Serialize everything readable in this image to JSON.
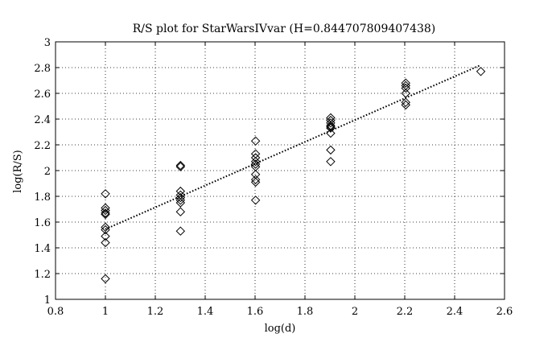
{
  "chart_data": {
    "type": "scatter",
    "title": "R/S plot for StarWarsIVvar (H=0.844707809407438)",
    "xlabel": "log(d)",
    "ylabel": "log(R/S)",
    "xlim": [
      0.8,
      2.6
    ],
    "ylim": [
      1,
      3
    ],
    "xticks": [
      "0.8",
      "1",
      "1.2",
      "1.4",
      "1.6",
      "1.8",
      "2",
      "2.2",
      "2.4",
      "2.6"
    ],
    "yticks": [
      "1",
      "1.2",
      "1.4",
      "1.6",
      "1.8",
      "2",
      "2.2",
      "2.4",
      "2.6",
      "2.8",
      "3"
    ],
    "grid": true,
    "marker": "diamond",
    "points": [
      {
        "x": 1.0,
        "y": 1.82
      },
      {
        "x": 1.0,
        "y": 1.71
      },
      {
        "x": 1.0,
        "y": 1.69
      },
      {
        "x": 1.0,
        "y": 1.67
      },
      {
        "x": 1.0,
        "y": 1.66
      },
      {
        "x": 1.0,
        "y": 1.56
      },
      {
        "x": 1.0,
        "y": 1.54
      },
      {
        "x": 1.0,
        "y": 1.49
      },
      {
        "x": 1.0,
        "y": 1.44
      },
      {
        "x": 1.0,
        "y": 1.16
      },
      {
        "x": 1.301,
        "y": 2.04
      },
      {
        "x": 1.301,
        "y": 2.03
      },
      {
        "x": 1.301,
        "y": 1.84
      },
      {
        "x": 1.301,
        "y": 1.81
      },
      {
        "x": 1.301,
        "y": 1.79
      },
      {
        "x": 1.301,
        "y": 1.77
      },
      {
        "x": 1.301,
        "y": 1.75
      },
      {
        "x": 1.301,
        "y": 1.68
      },
      {
        "x": 1.301,
        "y": 1.53
      },
      {
        "x": 1.602,
        "y": 2.23
      },
      {
        "x": 1.602,
        "y": 2.13
      },
      {
        "x": 1.602,
        "y": 2.1
      },
      {
        "x": 1.602,
        "y": 2.07
      },
      {
        "x": 1.602,
        "y": 2.05
      },
      {
        "x": 1.602,
        "y": 2.03
      },
      {
        "x": 1.602,
        "y": 1.97
      },
      {
        "x": 1.602,
        "y": 1.93
      },
      {
        "x": 1.602,
        "y": 1.91
      },
      {
        "x": 1.602,
        "y": 1.77
      },
      {
        "x": 1.903,
        "y": 2.41
      },
      {
        "x": 1.903,
        "y": 2.39
      },
      {
        "x": 1.903,
        "y": 2.37
      },
      {
        "x": 1.903,
        "y": 2.35
      },
      {
        "x": 1.903,
        "y": 2.34
      },
      {
        "x": 1.903,
        "y": 2.33
      },
      {
        "x": 1.903,
        "y": 2.29
      },
      {
        "x": 1.903,
        "y": 2.16
      },
      {
        "x": 1.903,
        "y": 2.07
      },
      {
        "x": 2.204,
        "y": 2.68
      },
      {
        "x": 2.204,
        "y": 2.66
      },
      {
        "x": 2.204,
        "y": 2.64
      },
      {
        "x": 2.204,
        "y": 2.6
      },
      {
        "x": 2.204,
        "y": 2.53
      },
      {
        "x": 2.204,
        "y": 2.51
      },
      {
        "x": 2.505,
        "y": 2.77
      }
    ],
    "fit_line": {
      "x": [
        1.0,
        2.505
      ],
      "y": [
        1.545,
        2.82
      ],
      "style": "dotted"
    },
    "colors": {
      "background": "#ffffff",
      "foreground": "#000000",
      "grid": "#000000"
    }
  }
}
